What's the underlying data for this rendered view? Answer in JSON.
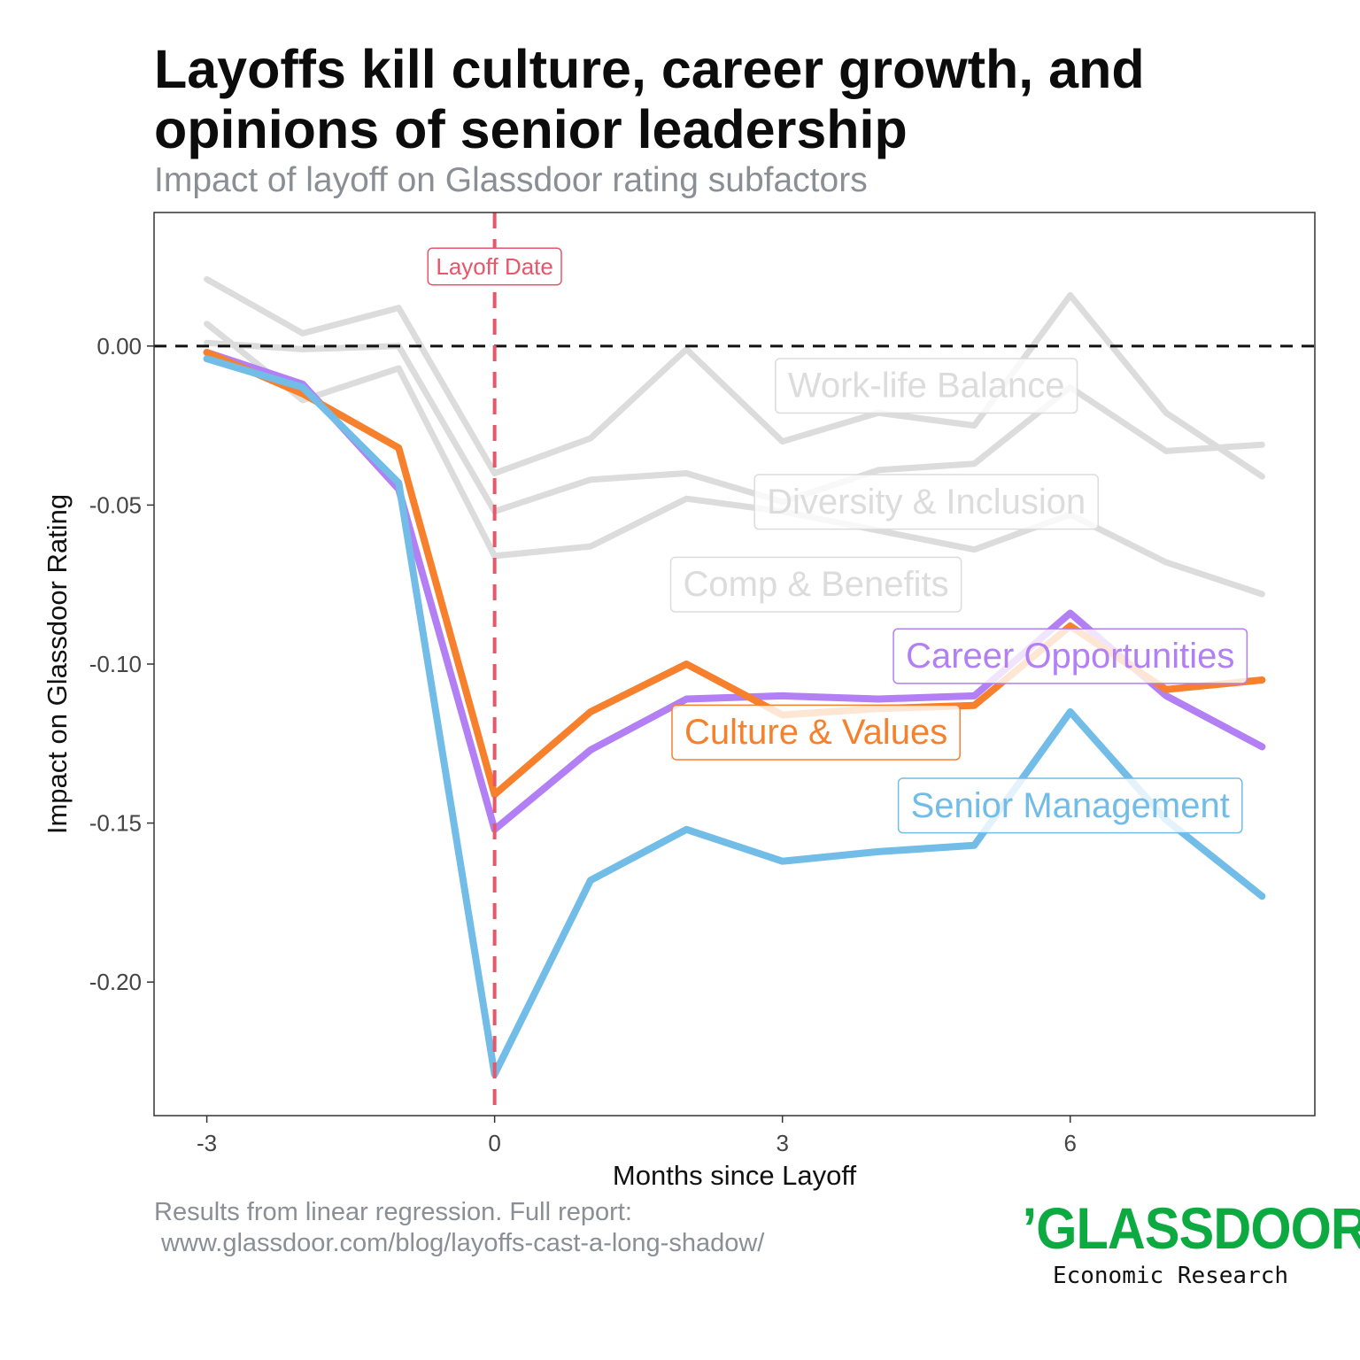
{
  "title": "Layoffs kill culture, career growth, and opinions of senior leadership",
  "subtitle": "Impact of layoff on Glassdoor rating subfactors",
  "footnote": {
    "line1": "Results from linear regression. Full report:",
    "line2": " www.glassdoor.com/blog/layoffs-cast-a-long-shadow/"
  },
  "logo": {
    "brand": "’GLASSDOOR’",
    "tagline": "Economic Research",
    "color": "#0caa41"
  },
  "chart_data": {
    "type": "line",
    "xlabel": "Months since Layoff",
    "ylabel": "Impact on Glassdoor Rating",
    "xlim": [
      -3.55,
      8.55
    ],
    "ylim": [
      -0.242,
      0.042
    ],
    "xticks": [
      -3,
      0,
      3,
      6
    ],
    "xtick_labels": [
      "-3",
      "0",
      "3",
      "6"
    ],
    "yticks": [
      0.0,
      -0.05,
      -0.1,
      -0.15,
      -0.2
    ],
    "ytick_labels": [
      "0.00",
      "-0.05",
      "-0.10",
      "-0.15",
      "-0.20"
    ],
    "grid": false,
    "reference_lines": {
      "zero_line": 0,
      "event_line": 0,
      "event_label": "Layoff Date",
      "event_color": "#e8566a"
    },
    "x": [
      -3,
      -2,
      -1,
      0,
      1,
      2,
      3,
      4,
      5,
      6,
      7,
      8
    ],
    "series": [
      {
        "name": "Work-life Balance",
        "color": "#dcdcdc",
        "highlight": false,
        "values": [
          0.021,
          0.004,
          0.012,
          -0.04,
          -0.029,
          -0.001,
          -0.03,
          -0.021,
          -0.025,
          0.016,
          -0.021,
          -0.041
        ],
        "label_x": 4.5,
        "label_y": -0.0125
      },
      {
        "name": "Diversity & Inclusion",
        "color": "#dcdcdc",
        "highlight": false,
        "values": [
          0.001,
          -0.001,
          0.0,
          -0.052,
          -0.042,
          -0.04,
          -0.049,
          -0.039,
          -0.037,
          -0.013,
          -0.033,
          -0.031
        ],
        "label_x": 4.5,
        "label_y": -0.049
      },
      {
        "name": "Comp & Benefits",
        "color": "#dcdcdc",
        "highlight": false,
        "values": [
          0.007,
          -0.017,
          -0.007,
          -0.066,
          -0.063,
          -0.048,
          -0.052,
          -0.058,
          -0.064,
          -0.053,
          -0.068,
          -0.078
        ],
        "label_x": 3.35,
        "label_y": -0.075
      },
      {
        "name": "Career Opportunities",
        "color": "#b27ff5",
        "highlight": true,
        "values": [
          -0.002,
          -0.012,
          -0.045,
          -0.152,
          -0.127,
          -0.111,
          -0.11,
          -0.111,
          -0.11,
          -0.084,
          -0.11,
          -0.126
        ],
        "label_x": 6.0,
        "label_y": -0.0975
      },
      {
        "name": "Culture & Values",
        "color": "#f7802d",
        "highlight": true,
        "values": [
          -0.002,
          -0.015,
          -0.032,
          -0.141,
          -0.115,
          -0.1,
          -0.116,
          -0.114,
          -0.113,
          -0.088,
          -0.108,
          -0.105
        ],
        "label_x": 3.35,
        "label_y": -0.1215
      },
      {
        "name": "Senior Management",
        "color": "#72bce8",
        "highlight": true,
        "values": [
          -0.004,
          -0.013,
          -0.043,
          -0.229,
          -0.168,
          -0.152,
          -0.162,
          -0.159,
          -0.157,
          -0.115,
          -0.149,
          -0.173
        ],
        "label_x": 6.0,
        "label_y": -0.1445
      }
    ]
  }
}
